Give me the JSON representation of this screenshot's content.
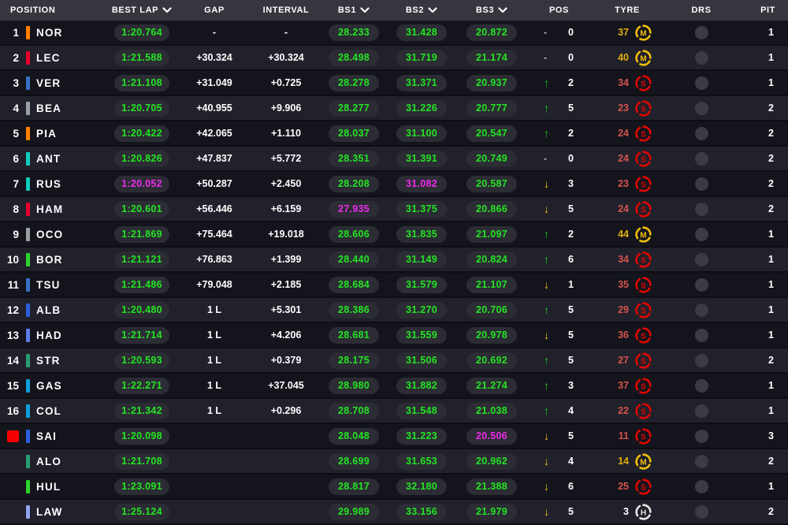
{
  "colors": {
    "time": {
      "green": "#23E423",
      "purple": "#EC2BEC",
      "white": "#FFFFFF"
    },
    "arrow": {
      "up": "#1FC71F",
      "down": "#F5C517"
    },
    "compound_icon": {
      "S": "#E10600",
      "M": "#F0BE0A",
      "H": "#E8E8E6"
    },
    "compound_age": {
      "S": "#D4544E",
      "M": "#DFAE0C",
      "H": "#FFFFFF"
    }
  },
  "table": {
    "columns": [
      {
        "label": "POSITION",
        "sortable": false
      },
      {
        "label": "BEST LAP",
        "sortable": true
      },
      {
        "label": "GAP",
        "sortable": false
      },
      {
        "label": "INTERVAL",
        "sortable": false
      },
      {
        "label": "BS1",
        "sortable": true
      },
      {
        "label": "BS2",
        "sortable": true
      },
      {
        "label": "BS3",
        "sortable": true
      },
      {
        "label": "POS",
        "sortable": false
      },
      {
        "label": "TYRE",
        "sortable": false
      },
      {
        "label": "DRS",
        "sortable": false
      },
      {
        "label": "PIT",
        "sortable": false
      }
    ],
    "rows": [
      {
        "pos": "1",
        "status": "running",
        "team": "#FF8000",
        "driver": "NOR",
        "best": "1:20.764",
        "best_c": "green",
        "gap": "-",
        "interval": "-",
        "bs1": "28.233",
        "bs1_c": "green",
        "bs2": "31.428",
        "bs2_c": "green",
        "bs3": "20.872",
        "bs3_c": "green",
        "chg_dir": "none",
        "chg_val": "0",
        "tyre_age": "37",
        "compound": "M",
        "drs": false,
        "pit": "1"
      },
      {
        "pos": "2",
        "status": "running",
        "team": "#E8002D",
        "driver": "LEC",
        "best": "1:21.588",
        "best_c": "green",
        "gap": "+30.324",
        "interval": "+30.324",
        "bs1": "28.498",
        "bs1_c": "green",
        "bs2": "31.719",
        "bs2_c": "green",
        "bs3": "21.174",
        "bs3_c": "green",
        "chg_dir": "none",
        "chg_val": "0",
        "tyre_age": "40",
        "compound": "M",
        "drs": false,
        "pit": "1"
      },
      {
        "pos": "3",
        "status": "running",
        "team": "#3671C6",
        "driver": "VER",
        "best": "1:21.108",
        "best_c": "green",
        "gap": "+31.049",
        "interval": "+0.725",
        "bs1": "28.278",
        "bs1_c": "green",
        "bs2": "31.371",
        "bs2_c": "green",
        "bs3": "20.937",
        "bs3_c": "green",
        "chg_dir": "up",
        "chg_val": "2",
        "tyre_age": "34",
        "compound": "S",
        "drs": false,
        "pit": "1"
      },
      {
        "pos": "4",
        "status": "running",
        "team": "#9C9FA2",
        "driver": "BEA",
        "best": "1:20.705",
        "best_c": "green",
        "gap": "+40.955",
        "interval": "+9.906",
        "bs1": "28.277",
        "bs1_c": "green",
        "bs2": "31.226",
        "bs2_c": "green",
        "bs3": "20.777",
        "bs3_c": "green",
        "chg_dir": "up",
        "chg_val": "5",
        "tyre_age": "23",
        "compound": "S",
        "drs": false,
        "pit": "2"
      },
      {
        "pos": "5",
        "status": "running",
        "team": "#FF8000",
        "driver": "PIA",
        "best": "1:20.422",
        "best_c": "green",
        "gap": "+42.065",
        "interval": "+1.110",
        "bs1": "28.037",
        "bs1_c": "green",
        "bs2": "31.100",
        "bs2_c": "green",
        "bs3": "20.547",
        "bs3_c": "green",
        "chg_dir": "up",
        "chg_val": "2",
        "tyre_age": "24",
        "compound": "S",
        "drs": false,
        "pit": "2"
      },
      {
        "pos": "6",
        "status": "running",
        "team": "#0FCDBE",
        "driver": "ANT",
        "best": "1:20.826",
        "best_c": "green",
        "gap": "+47.837",
        "interval": "+5.772",
        "bs1": "28.351",
        "bs1_c": "green",
        "bs2": "31.391",
        "bs2_c": "green",
        "bs3": "20.749",
        "bs3_c": "green",
        "chg_dir": "none",
        "chg_val": "0",
        "tyre_age": "24",
        "compound": "S",
        "drs": false,
        "pit": "2"
      },
      {
        "pos": "7",
        "status": "running",
        "team": "#0FCDBE",
        "driver": "RUS",
        "best": "1:20.052",
        "best_c": "purple",
        "gap": "+50.287",
        "interval": "+2.450",
        "bs1": "28.208",
        "bs1_c": "green",
        "bs2": "31.082",
        "bs2_c": "purple",
        "bs3": "20.587",
        "bs3_c": "green",
        "chg_dir": "down",
        "chg_val": "3",
        "tyre_age": "23",
        "compound": "S",
        "drs": false,
        "pit": "2"
      },
      {
        "pos": "8",
        "status": "running",
        "team": "#E8002D",
        "driver": "HAM",
        "best": "1:20.601",
        "best_c": "green",
        "gap": "+56.446",
        "interval": "+6.159",
        "bs1": "27.935",
        "bs1_c": "purple",
        "bs2": "31.375",
        "bs2_c": "green",
        "bs3": "20.866",
        "bs3_c": "green",
        "chg_dir": "down",
        "chg_val": "5",
        "tyre_age": "24",
        "compound": "S",
        "drs": false,
        "pit": "2"
      },
      {
        "pos": "9",
        "status": "running",
        "team": "#9C9FA2",
        "driver": "OCO",
        "best": "1:21.869",
        "best_c": "green",
        "gap": "+75.464",
        "interval": "+19.018",
        "bs1": "28.606",
        "bs1_c": "green",
        "bs2": "31.835",
        "bs2_c": "green",
        "bs3": "21.097",
        "bs3_c": "green",
        "chg_dir": "up",
        "chg_val": "2",
        "tyre_age": "44",
        "compound": "M",
        "drs": false,
        "pit": "1"
      },
      {
        "pos": "10",
        "status": "running",
        "team": "#2ED32E",
        "driver": "BOR",
        "best": "1:21.121",
        "best_c": "green",
        "gap": "+76.863",
        "interval": "+1.399",
        "bs1": "28.440",
        "bs1_c": "green",
        "bs2": "31.149",
        "bs2_c": "green",
        "bs3": "20.824",
        "bs3_c": "green",
        "chg_dir": "up",
        "chg_val": "6",
        "tyre_age": "34",
        "compound": "S",
        "drs": false,
        "pit": "1"
      },
      {
        "pos": "11",
        "status": "running",
        "team": "#3671C6",
        "driver": "TSU",
        "best": "1:21.486",
        "best_c": "green",
        "gap": "+79.048",
        "interval": "+2.185",
        "bs1": "28.684",
        "bs1_c": "green",
        "bs2": "31.579",
        "bs2_c": "green",
        "bs3": "21.107",
        "bs3_c": "green",
        "chg_dir": "down",
        "chg_val": "1",
        "tyre_age": "35",
        "compound": "S",
        "drs": false,
        "pit": "1"
      },
      {
        "pos": "12",
        "status": "running",
        "team": "#2B61DE",
        "driver": "ALB",
        "best": "1:20.480",
        "best_c": "green",
        "gap": "1 L",
        "interval": "+5.301",
        "bs1": "28.386",
        "bs1_c": "green",
        "bs2": "31.270",
        "bs2_c": "green",
        "bs3": "20.706",
        "bs3_c": "green",
        "chg_dir": "up",
        "chg_val": "5",
        "tyre_age": "29",
        "compound": "S",
        "drs": false,
        "pit": "1"
      },
      {
        "pos": "13",
        "status": "running",
        "team": "#5C7CE6",
        "driver": "HAD",
        "best": "1:21.714",
        "best_c": "green",
        "gap": "1 L",
        "interval": "+4.206",
        "bs1": "28.681",
        "bs1_c": "green",
        "bs2": "31.559",
        "bs2_c": "green",
        "bs3": "20.978",
        "bs3_c": "green",
        "chg_dir": "down",
        "chg_val": "5",
        "tyre_age": "36",
        "compound": "S",
        "drs": false,
        "pit": "1"
      },
      {
        "pos": "14",
        "status": "running",
        "team": "#2A9D73",
        "driver": "STR",
        "best": "1:20.593",
        "best_c": "green",
        "gap": "1 L",
        "interval": "+0.379",
        "bs1": "28.175",
        "bs1_c": "green",
        "bs2": "31.506",
        "bs2_c": "green",
        "bs3": "20.692",
        "bs3_c": "green",
        "chg_dir": "up",
        "chg_val": "5",
        "tyre_age": "27",
        "compound": "S",
        "drs": false,
        "pit": "2"
      },
      {
        "pos": "15",
        "status": "running",
        "team": "#0EA0DC",
        "driver": "GAS",
        "best": "1:22.271",
        "best_c": "green",
        "gap": "1 L",
        "interval": "+37.045",
        "bs1": "28.980",
        "bs1_c": "green",
        "bs2": "31.882",
        "bs2_c": "green",
        "bs3": "21.274",
        "bs3_c": "green",
        "chg_dir": "up",
        "chg_val": "3",
        "tyre_age": "37",
        "compound": "S",
        "drs": false,
        "pit": "1"
      },
      {
        "pos": "16",
        "status": "running",
        "team": "#0EA0DC",
        "driver": "COL",
        "best": "1:21.342",
        "best_c": "green",
        "gap": "1 L",
        "interval": "+0.296",
        "bs1": "28.708",
        "bs1_c": "green",
        "bs2": "31.548",
        "bs2_c": "green",
        "bs3": "21.038",
        "bs3_c": "green",
        "chg_dir": "up",
        "chg_val": "4",
        "tyre_age": "22",
        "compound": "S",
        "drs": false,
        "pit": "1"
      },
      {
        "pos": "",
        "status": "retired",
        "team": "#2B61DE",
        "driver": "SAI",
        "best": "1:20.098",
        "best_c": "green",
        "gap": "",
        "interval": "",
        "bs1": "28.048",
        "bs1_c": "green",
        "bs2": "31.223",
        "bs2_c": "green",
        "bs3": "20.506",
        "bs3_c": "purple",
        "chg_dir": "down",
        "chg_val": "5",
        "tyre_age": "11",
        "compound": "S",
        "drs": false,
        "pit": "3"
      },
      {
        "pos": "",
        "status": "out",
        "team": "#2A9D73",
        "driver": "ALO",
        "best": "1:21.708",
        "best_c": "green",
        "gap": "",
        "interval": "",
        "bs1": "28.699",
        "bs1_c": "green",
        "bs2": "31.653",
        "bs2_c": "green",
        "bs3": "20.962",
        "bs3_c": "green",
        "chg_dir": "down",
        "chg_val": "4",
        "tyre_age": "14",
        "compound": "M",
        "drs": false,
        "pit": "2"
      },
      {
        "pos": "",
        "status": "out",
        "team": "#2ED32E",
        "driver": "HUL",
        "best": "1:23.091",
        "best_c": "green",
        "gap": "",
        "interval": "",
        "bs1": "28.817",
        "bs1_c": "green",
        "bs2": "32.180",
        "bs2_c": "green",
        "bs3": "21.388",
        "bs3_c": "green",
        "chg_dir": "down",
        "chg_val": "6",
        "tyre_age": "25",
        "compound": "S",
        "drs": false,
        "pit": "1"
      },
      {
        "pos": "",
        "status": "out",
        "team": "#93A3F0",
        "driver": "LAW",
        "best": "1:25.124",
        "best_c": "green",
        "gap": "",
        "interval": "",
        "bs1": "29.989",
        "bs1_c": "green",
        "bs2": "33.156",
        "bs2_c": "green",
        "bs3": "21.979",
        "bs3_c": "green",
        "chg_dir": "down",
        "chg_val": "5",
        "tyre_age": "3",
        "compound": "H",
        "drs": false,
        "pit": "2"
      }
    ]
  }
}
